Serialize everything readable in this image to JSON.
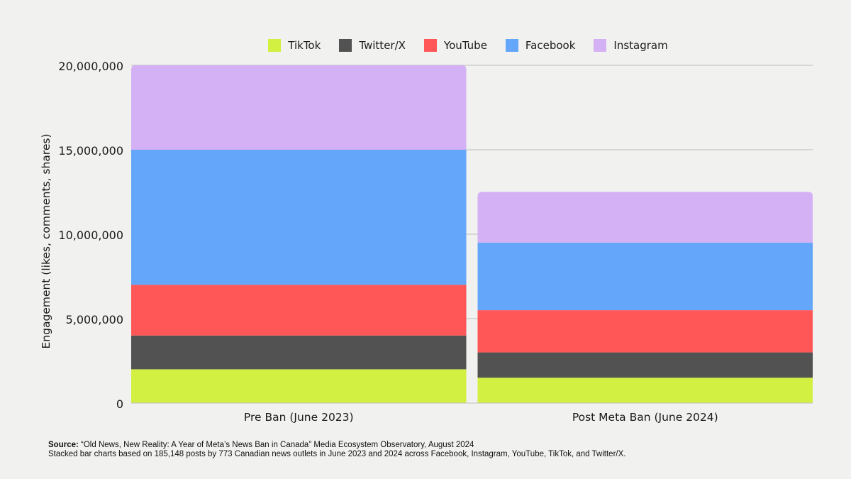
{
  "chart_data": {
    "type": "bar",
    "stacked": true,
    "categories": [
      "Pre Ban (June 2023)",
      "Post Meta Ban (June 2024)"
    ],
    "series": [
      {
        "name": "TikTok",
        "color": "#d1f042",
        "values": [
          2000000,
          1500000
        ]
      },
      {
        "name": "Twitter/X",
        "color": "#525252",
        "values": [
          2000000,
          1500000
        ]
      },
      {
        "name": "YouTube",
        "color": "#ff5757",
        "values": [
          3000000,
          2500000
        ]
      },
      {
        "name": "Facebook",
        "color": "#64a6fa",
        "values": [
          8000000,
          4000000
        ]
      },
      {
        "name": "Instagram",
        "color": "#d4b1f4",
        "values": [
          5000000,
          3000000
        ]
      }
    ],
    "ylabel": "Engagement (likes, comments, shares)",
    "ylim": [
      0,
      20000000
    ],
    "yticks": [
      0,
      5000000,
      10000000,
      15000000,
      20000000
    ],
    "ytick_labels": [
      "0",
      "5,000,000",
      "10,000,000",
      "15,000,000",
      "20,000,000"
    ],
    "grid": true,
    "legend_position": "top-center"
  },
  "source": {
    "label": "Source:",
    "text": " “Old News, New Reality: A Year of Meta’s News Ban in Canada” Media Ecosystem Observatory, August 2024",
    "note": "Stacked bar charts based on 185,148 posts by 773 Canadian news outlets in June 2023 and 2024 across Facebook, Instagram, YouTube, TikTok, and Twitter/X."
  }
}
